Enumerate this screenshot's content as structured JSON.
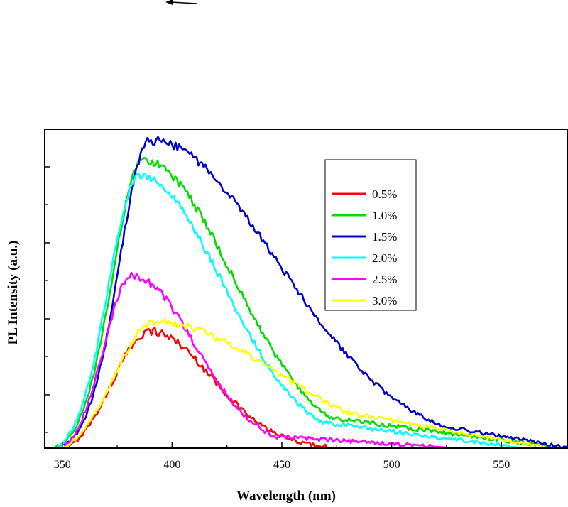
{
  "chart_data": {
    "type": "line",
    "xlabel": "Wavelength (nm)",
    "ylabel": "PL Intensity (a.u.)",
    "xlim": [
      342,
      580
    ],
    "ylim": [
      0,
      1.0
    ],
    "x_ticks": [
      "350",
      "400",
      "450",
      "500",
      "550"
    ],
    "y_ticks": "unlabeled",
    "legend_position": "top-right",
    "line_smoothness": "noisy",
    "series": [
      {
        "name": "0.5%",
        "color": "#ff0000",
        "peak_x": 390,
        "peak_y": 0.38,
        "onset_x": 352,
        "sigma_left": 17,
        "sigma_right": 28,
        "tail_start": 470,
        "tail_frac": 0.0,
        "tail_end": 470,
        "noise": 0.01
      },
      {
        "name": "1.0%",
        "color": "#00dd00",
        "peak_x": 387,
        "peak_y": 0.935,
        "onset_x": 346,
        "sigma_left": 14,
        "sigma_right": 40,
        "tail_start": 460,
        "tail_frac": 0.19,
        "tail_end": 578,
        "noise": 0.01
      },
      {
        "name": "1.5%",
        "color": "#0000cc",
        "peak_x": 390,
        "peak_y": 1.0,
        "onset_x": 347,
        "sigma_left": 14,
        "sigma_right": 58,
        "tail_start": 495,
        "tail_frac": 0.24,
        "tail_end": 580,
        "noise": 0.01
      },
      {
        "name": "2.0%",
        "color": "#00ffff",
        "peak_x": 385,
        "peak_y": 0.885,
        "onset_x": 347,
        "sigma_left": 14,
        "sigma_right": 38,
        "tail_start": 455,
        "tail_frac": 0.18,
        "tail_end": 560,
        "noise": 0.01
      },
      {
        "name": "2.5%",
        "color": "#ff00ff",
        "peak_x": 382,
        "peak_y": 0.56,
        "onset_x": 350,
        "sigma_left": 13,
        "sigma_right": 28,
        "tail_start": 450,
        "tail_frac": 0.12,
        "tail_end": 530,
        "noise": 0.01
      },
      {
        "name": "3.0%",
        "color": "#ffff00",
        "peak_x": 392,
        "peak_y": 0.41,
        "onset_x": 350,
        "sigma_left": 18,
        "sigma_right": 55,
        "tail_start": 440,
        "tail_frac": 0.55,
        "tail_end": 572,
        "noise": 0.008
      }
    ]
  }
}
